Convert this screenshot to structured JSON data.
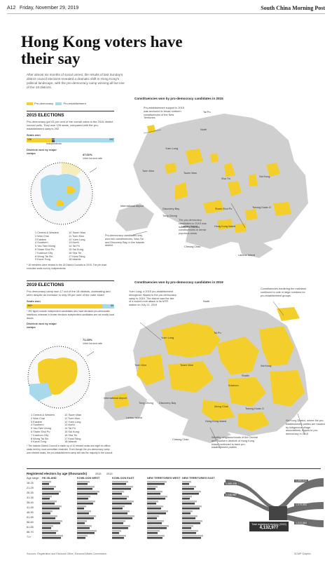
{
  "header": {
    "page": "A12",
    "date": "Friday, November 29, 2019",
    "brand": "South China Morning Post"
  },
  "title": "Hong Kong voters have their say",
  "intro": "After almost six months of social unrest, the results of last Sunday's district council elections revealed a dramatic shift in Hong Kong's political landscape, with the pro-democracy camp winning all but one of the 18 districts.",
  "legend": {
    "pro": "Pro-democracy",
    "est": "Pro-establishment",
    "colors": {
      "pro": "#f4cf2b",
      "est": "#a8d8ec",
      "land": "#cfcfcf"
    }
  },
  "e2015": {
    "heading": "2015 ELECTIONS",
    "desc": "Pro-democracy got 43 per cent of the overall votes in the 2015 district council polls. They won 126 seats, compared with the pro-establishment camp's 292",
    "seats_label": "Seats won",
    "seats": {
      "pro": "126",
      "ind": "13",
      "est": "292",
      "ind_label": "Independents",
      "pro_frac": 0.29,
      "ind_frac": 0.03
    },
    "camps_label": "Districts won by major camps",
    "turnout": "47.01%",
    "turnout_label": "Voter turnout rate",
    "map_title": "Constituencies won by pro-democracy candidates in 2015",
    "note": "* 18 members were elected to the 18 District Councils in 2015. The pie chart excludes seats won by independents."
  },
  "e2019": {
    "heading": "2019 ELECTIONS",
    "desc": "Pro-democracy camp won 17 out of the 18 districts, dominating and seen despite an increase to only 55 per cent of the voter share",
    "seats_label": "Seats won",
    "seats": {
      "pro": "392*",
      "est": "59",
      "pro_frac": 0.87
    },
    "seat_note": "* 392 figure include independent candidates who have declared pro-democratic intentions, whereas in former elections independent candidates are not mostly local issues",
    "camps_label": "Districts won by major camps",
    "turnout": "71.23%",
    "turnout_label": "Voter turnout rate",
    "map_title": "Constituencies won by pro-democracy candidates in 2019",
    "note": "* The Islands District Council is made up of 10 elected seats and eight ex-officio seats held by rural committee chairmen. Even though the pro-democracy camp won elected seats, the pro-establishment camp still has the majority in the council."
  },
  "districts": [
    "1 Central & Western",
    "2 Wan Chai",
    "3 Eastern",
    "4 Southern",
    "5 Yau Tsim Mong",
    "6 Sham Shui Po",
    "7 Kowloon City",
    "8 Wong Tai Sin",
    "9 Kwun Tong",
    "10 Tsuen Wan",
    "11 Tuen Mun",
    "12 Yuen Long",
    "13 North",
    "14 Tai Po",
    "15 Sai Kung",
    "16 Sha Tin",
    "17 Kwai Tsing",
    "18 Islands"
  ],
  "places": [
    "Tai Po",
    "Yuen Long",
    "Tuen Mun",
    "Sai Kung",
    "North",
    "Tsuen Wan",
    "Sha Tin",
    "Shatin",
    "Sai Kung",
    "International Airport",
    "Discovery Bay",
    "Tung Chung",
    "Lantau Island",
    "Cheung Chau",
    "Hong Kong Island",
    "Sham Shui Po",
    "Wong Chuk",
    "Kowloon",
    "Tseung Kwan O",
    "Lamma Island"
  ],
  "ann2015": [
    "Pro-establishment support in 2015 was anchored in broad northern constituencies of the New Territories",
    "The pro-democracy candidates in 2015 was isolated to narrow constituencies in dense populous areas",
    "Pro-democracy candidates only won two constituencies, Wan Tai and Discovery Bay, in the Islands district"
  ],
  "ann2019": [
    "Yuen Long, a 2015 pro-establishment stronghold, flipped to the pro-democracy camp in 2019. The district was the site of a violent mob attack in its MTR station on July 21, 2019",
    "Constituencies bordering the mainland continued to vote in large numbers for pro-establishment groups",
    "Wealthy neighbourhoods of the Central and Southern districts of Hong Kong Island continued to back pro-establishment parties",
    "Sai Kung District, where the pro-establishment parties are backed by indigenous village associations, flipped to pro-democracy in 2019"
  ],
  "electors": {
    "title": "Registered electors by age (thousands)",
    "years": [
      "2015",
      "2019"
    ],
    "regions": [
      "HK ISLAND",
      "KOWLOON WEST",
      "KOWLOON EAST",
      "NEW TERRITORIES WEST",
      "NEW TERRITORIES EAST"
    ],
    "ages": [
      "18-20",
      "21-25",
      "26-30",
      "31-35",
      "36-40",
      "41-45",
      "46-50",
      "51-55",
      "56-60",
      "61-65",
      "66-70",
      "71+"
    ],
    "age_head": "Age range",
    "total_label": "Total registered electors (2019)",
    "total": "4,132,977",
    "flows": [
      "1,085,436",
      "2,046,987",
      "1,090,012",
      "1,075,554",
      "1,012,564"
    ]
  },
  "footer": {
    "sources": "Sources: Registration and Electoral Office, Electoral Affairs Commission",
    "credit": "SCMP Graphic"
  }
}
